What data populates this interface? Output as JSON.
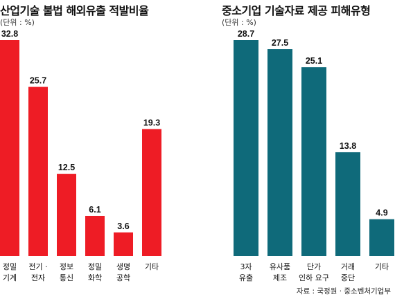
{
  "chart_data": [
    {
      "type": "bar",
      "title": "산업기술 불법 해외유출 적발비율",
      "unit_label": "(단위 : %)",
      "categories": [
        [
          "정밀",
          "기계"
        ],
        [
          "전기 ·",
          "전자"
        ],
        [
          "정보",
          "통신"
        ],
        [
          "정밀",
          "화학"
        ],
        [
          "생명",
          "공학"
        ],
        [
          "기타"
        ]
      ],
      "values": [
        32.8,
        25.7,
        12.5,
        6.1,
        3.6,
        19.3
      ],
      "value_labels": [
        "32.8",
        "25.7",
        "12.5",
        "6.1",
        "3.6",
        "19.3"
      ],
      "color": "#ee1c25",
      "ylim": [
        0,
        32.8
      ]
    },
    {
      "type": "bar",
      "title": "중소기업 기술자료 제공 피해유형",
      "unit_label": "(단위 : %)",
      "categories": [
        [
          "3자",
          "유출"
        ],
        [
          "유사품",
          "제조"
        ],
        [
          "단가",
          "인하 요구"
        ],
        [
          "거래",
          "중단"
        ],
        [
          "기타"
        ]
      ],
      "values": [
        28.7,
        27.5,
        25.1,
        13.8,
        4.9
      ],
      "value_labels": [
        "28.7",
        "27.5",
        "25.1",
        "13.8",
        "4.9"
      ],
      "color": "#0f6a7a",
      "ylim": [
        0,
        28.7
      ]
    }
  ],
  "source": "자료 : 국정원 · 중소벤처기업부"
}
